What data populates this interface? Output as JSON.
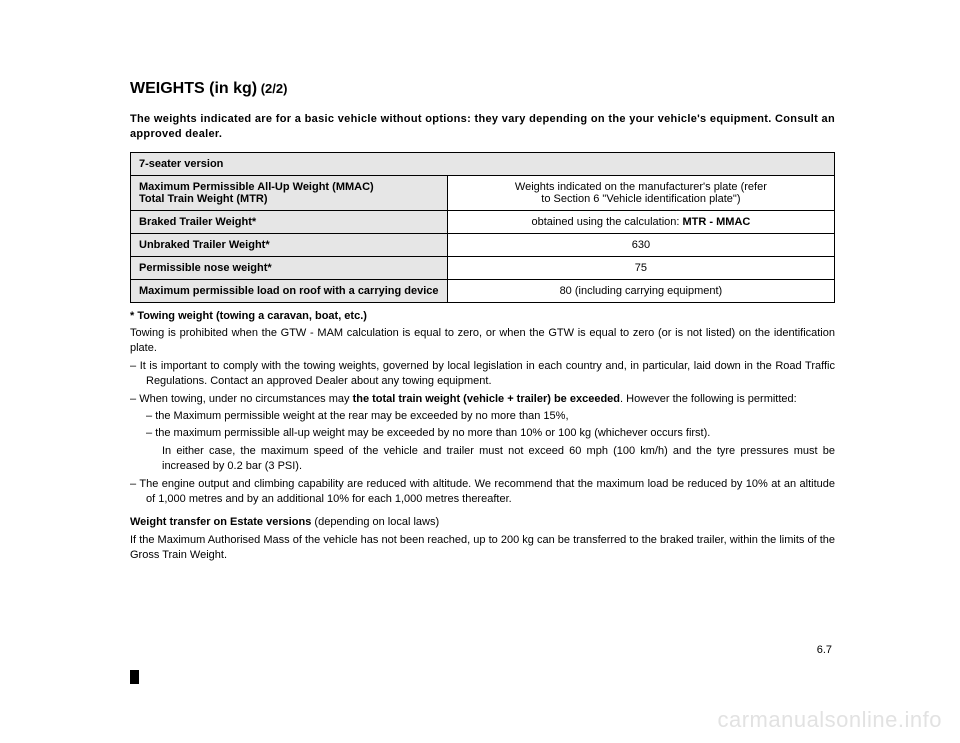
{
  "title": {
    "main": "WEIGHTS (in kg)",
    "sub": " (2/2)"
  },
  "intro": "The weights indicated are for a basic vehicle without options: they vary depending on the your vehicle's equipment. Consult an approved dealer.",
  "table": {
    "type": "table",
    "header_bg": "#e6e6e6",
    "border_color": "#000000",
    "font_size": 11,
    "rows": [
      {
        "label": "7-seater version",
        "value": "",
        "full": true
      },
      {
        "label": "Maximum Permissible All-Up Weight (MMAC)\nTotal Train Weight (MTR)",
        "value": "Weights indicated on the manufacturer's plate (refer\nto Section 6 \"Vehicle identification plate\")"
      },
      {
        "label": "Braked Trailer Weight*",
        "value_pre": "obtained using the calculation: ",
        "value_bold": "MTR - MMAC"
      },
      {
        "label": "Unbraked Trailer Weight*",
        "value": "630"
      },
      {
        "label": "Permissible nose weight*",
        "value": "75"
      },
      {
        "label": "Maximum permissible load on roof with a carrying device",
        "value": "80 (including carrying equipment)"
      }
    ]
  },
  "notes": {
    "towing_hdr": "* Towing weight (towing a caravan, boat, etc.)",
    "towing_p1": "Towing is prohibited when the GTW - MAM calculation is equal to zero, or when the GTW is equal to zero (or is not listed) on the identification plate.",
    "li1": "It is important to comply with the towing weights, governed by local legislation in each country and, in particular, laid down in the Road Traffic Regulations. Contact an approved Dealer about any towing equipment.",
    "li2_pre": "When towing, under no circumstances may ",
    "li2_bold": "the total train weight (vehicle + trailer) be exceeded",
    "li2_post": ". However the following is permitted:",
    "li2a": "the Maximum permissible weight at the rear may be exceeded by no more than 15%,",
    "li2b": "the maximum permissible all-up weight may be exceeded by no more than 10% or 100 kg (whichever occurs first).",
    "li2_tail": "In either case, the maximum speed of the vehicle and trailer must not exceed 60 mph (100 km/h) and the tyre pressures must be increased by 0.2 bar (3 PSI).",
    "li3": "The engine output and climbing capability are reduced with altitude. We recommend that the maximum load be reduced by 10% at an altitude of 1,000 metres and by an additional 10% for each 1,000 metres thereafter.",
    "wt_hdr": "Weight transfer on Estate versions",
    "wt_hdr_post": " (depending on local laws)",
    "wt_p": "If the Maximum Authorised Mass of the vehicle has not been reached, up to 200 kg can be transferred to the braked trailer, within the limits of the Gross Train Weight."
  },
  "pagenum": "6.7",
  "watermark": "carmanualsonline.info"
}
